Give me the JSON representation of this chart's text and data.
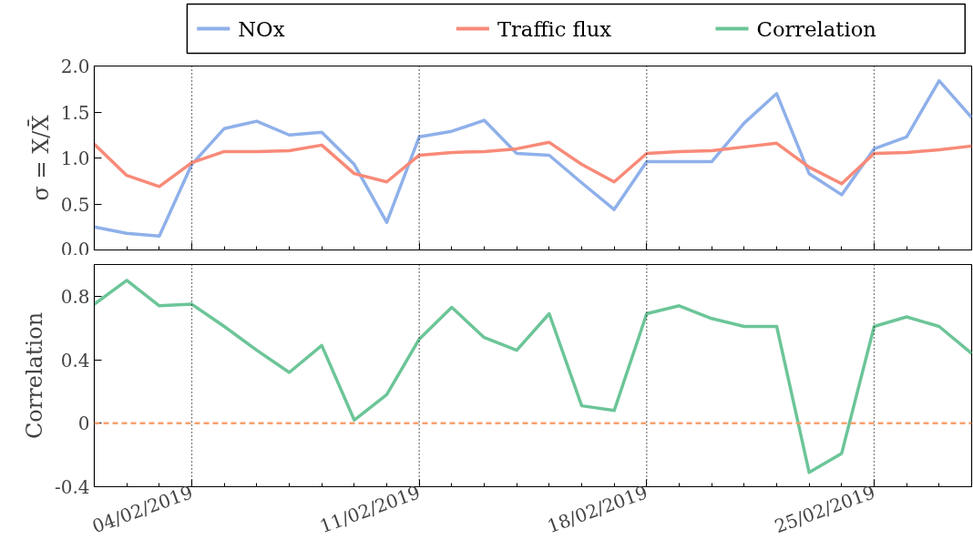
{
  "chart_data": [
    {
      "type": "line",
      "ylabel": "σ = X/X̄",
      "legend": "top",
      "grid": false,
      "tick_labels": "y",
      "x": [
        "2019-02-01",
        "2019-02-02",
        "2019-02-03",
        "2019-02-04",
        "2019-02-05",
        "2019-02-06",
        "2019-02-07",
        "2019-02-08",
        "2019-02-09",
        "2019-02-10",
        "2019-02-11",
        "2019-02-12",
        "2019-02-13",
        "2019-02-14",
        "2019-02-15",
        "2019-02-16",
        "2019-02-17",
        "2019-02-18",
        "2019-02-19",
        "2019-02-20",
        "2019-02-21",
        "2019-02-22",
        "2019-02-23",
        "2019-02-24",
        "2019-02-25",
        "2019-02-26",
        "2019-02-27",
        "2019-02-28"
      ],
      "xlim": [
        "2019-02-01",
        "2019-02-28"
      ],
      "xticks": [
        {
          "value": "2019-02-04",
          "label": null
        },
        {
          "value": "2019-02-11",
          "label": null
        },
        {
          "value": "2019-02-18",
          "label": null
        },
        {
          "value": "2019-02-25",
          "label": null
        }
      ],
      "ylim": [
        0,
        2
      ],
      "yticks": [
        {
          "value": 0,
          "label": "0.0"
        },
        {
          "value": 0.5,
          "label": "0.5"
        },
        {
          "value": 1,
          "label": "1.0"
        },
        {
          "value": 1.5,
          "label": "1.5"
        },
        {
          "value": 2,
          "label": "2.0"
        }
      ],
      "series": [
        {
          "name": "NOx",
          "color": "#8fb0ea",
          "values": [
            0.25,
            0.18,
            0.15,
            0.93,
            1.32,
            1.4,
            1.25,
            1.28,
            0.93,
            0.3,
            1.23,
            1.29,
            1.41,
            1.05,
            1.03,
            0.73,
            0.44,
            0.96,
            0.96,
            0.96,
            1.38,
            1.7,
            0.83,
            0.6,
            1.1,
            1.23,
            1.84,
            1.44
          ]
        },
        {
          "name": "Traffic flux",
          "color": "#f88a78",
          "values": [
            1.15,
            0.81,
            0.69,
            0.95,
            1.07,
            1.07,
            1.08,
            1.14,
            0.83,
            0.74,
            1.03,
            1.06,
            1.07,
            1.1,
            1.17,
            0.93,
            0.74,
            1.05,
            1.07,
            1.08,
            1.12,
            1.16,
            0.9,
            0.72,
            1.05,
            1.06,
            1.09,
            1.13
          ]
        }
      ],
      "ref_lines": [
        {
          "axis": "x",
          "value": "2019-02-04",
          "color": "#000000",
          "line_style": "dotted"
        },
        {
          "axis": "x",
          "value": "2019-02-11",
          "color": "#000000",
          "line_style": "dotted"
        },
        {
          "axis": "x",
          "value": "2019-02-18",
          "color": "#000000",
          "line_style": "dotted"
        },
        {
          "axis": "x",
          "value": "2019-02-25",
          "color": "#000000",
          "line_style": "dotted"
        }
      ]
    },
    {
      "type": "line",
      "ylabel": "Correlation",
      "legend": "top",
      "grid": false,
      "x": [
        "2019-02-01",
        "2019-02-02",
        "2019-02-03",
        "2019-02-04",
        "2019-02-05",
        "2019-02-06",
        "2019-02-07",
        "2019-02-08",
        "2019-02-09",
        "2019-02-10",
        "2019-02-11",
        "2019-02-12",
        "2019-02-13",
        "2019-02-14",
        "2019-02-15",
        "2019-02-16",
        "2019-02-17",
        "2019-02-18",
        "2019-02-19",
        "2019-02-20",
        "2019-02-21",
        "2019-02-22",
        "2019-02-23",
        "2019-02-24",
        "2019-02-25",
        "2019-02-26",
        "2019-02-27",
        "2019-02-28"
      ],
      "xlim": [
        "2019-02-01",
        "2019-02-28"
      ],
      "xticks": [
        {
          "value": "2019-02-04",
          "label": "04/02/2019"
        },
        {
          "value": "2019-02-11",
          "label": "11/02/2019"
        },
        {
          "value": "2019-02-18",
          "label": "18/02/2019"
        },
        {
          "value": "2019-02-25",
          "label": "25/02/2019"
        }
      ],
      "ylim": [
        -0.4,
        1.0
      ],
      "yticks": [
        -0.4,
        0,
        0.4,
        0.8
      ],
      "series": [
        {
          "name": "Correlation",
          "color": "#6cc598",
          "values": [
            0.75,
            0.9,
            0.74,
            0.75,
            0.61,
            0.46,
            0.32,
            0.49,
            0.02,
            0.18,
            0.53,
            0.73,
            0.54,
            0.46,
            0.69,
            0.11,
            0.08,
            0.69,
            0.74,
            0.66,
            0.61,
            0.61,
            -0.31,
            -0.19,
            0.61,
            0.67,
            0.61,
            0.44
          ]
        }
      ],
      "ref_lines": [
        {
          "axis": "x",
          "value": "2019-02-04",
          "color": "#000000",
          "line_style": "dotted"
        },
        {
          "axis": "x",
          "value": "2019-02-11",
          "color": "#000000",
          "line_style": "dotted"
        },
        {
          "axis": "x",
          "value": "2019-02-18",
          "color": "#000000",
          "line_style": "dotted"
        },
        {
          "axis": "x",
          "value": "2019-02-25",
          "color": "#000000",
          "line_style": "dotted"
        },
        {
          "axis": "y",
          "value": 0,
          "color": "#f5a070",
          "line_style": "dashed"
        }
      ]
    }
  ]
}
